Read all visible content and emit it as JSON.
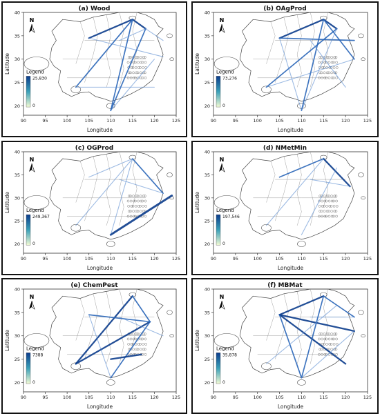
{
  "chart_data": [
    {
      "type": "map",
      "title": "(a) Wood",
      "xlabel": "Longitude",
      "ylabel": "Latitude",
      "xlim": [
        90,
        125
      ],
      "ylim": [
        18,
        40
      ],
      "xticks": [
        "90",
        "95",
        "100",
        "105",
        "110",
        "115",
        "120",
        "125"
      ],
      "yticks": [
        "20",
        "25",
        "30",
        "35",
        "40"
      ],
      "legend_title": "Legend",
      "legend_max": "25,830",
      "legend_min": "0",
      "north": "N",
      "flows": [
        {
          "from": [
            105,
            34.5
          ],
          "to": [
            115,
            38.5
          ],
          "w": 3
        },
        {
          "from": [
            115,
            38.5
          ],
          "to": [
            118,
            36.5
          ],
          "w": 3
        },
        {
          "from": [
            118,
            36.5
          ],
          "to": [
            110,
            19
          ],
          "w": 2
        },
        {
          "from": [
            115,
            38.5
          ],
          "to": [
            110,
            19
          ],
          "w": 2
        },
        {
          "from": [
            115,
            38.5
          ],
          "to": [
            102,
            24
          ],
          "w": 2
        },
        {
          "from": [
            105,
            34.5
          ],
          "to": [
            122,
            30.5
          ],
          "w": 1
        },
        {
          "from": [
            102,
            24
          ],
          "to": [
            120,
            24
          ],
          "w": 1
        },
        {
          "from": [
            110,
            19
          ],
          "to": [
            120,
            30
          ],
          "w": 1
        },
        {
          "from": [
            118,
            36.5
          ],
          "to": [
            122,
            34
          ],
          "w": 1
        },
        {
          "from": [
            112,
            34
          ],
          "to": [
            118,
            36.5
          ],
          "w": 1
        }
      ]
    },
    {
      "type": "map",
      "title": "(b) OAgProd",
      "xlabel": "Longitude",
      "ylabel": "Latitude",
      "xlim": [
        90,
        125
      ],
      "ylim": [
        18,
        40
      ],
      "xticks": [
        "90",
        "95",
        "100",
        "105",
        "110",
        "115",
        "120",
        "125"
      ],
      "yticks": [
        "20",
        "25",
        "30",
        "35",
        "40"
      ],
      "legend_title": "Legend",
      "legend_max": "73,276",
      "legend_min": "0",
      "north": "N",
      "flows": [
        {
          "from": [
            105,
            34.5
          ],
          "to": [
            115,
            38.5
          ],
          "w": 3
        },
        {
          "from": [
            115,
            38.5
          ],
          "to": [
            118,
            36.5
          ],
          "w": 3
        },
        {
          "from": [
            115,
            38.5
          ],
          "to": [
            110,
            19
          ],
          "w": 2
        },
        {
          "from": [
            115,
            38.5
          ],
          "to": [
            122,
            30
          ],
          "w": 2
        },
        {
          "from": [
            118,
            36.5
          ],
          "to": [
            102,
            24
          ],
          "w": 2
        },
        {
          "from": [
            105,
            34.5
          ],
          "to": [
            122,
            34
          ],
          "w": 2
        },
        {
          "from": [
            112,
            34
          ],
          "to": [
            120,
            24
          ],
          "w": 1
        },
        {
          "from": [
            110,
            19
          ],
          "to": [
            118,
            36.5
          ],
          "w": 1
        },
        {
          "from": [
            102,
            24
          ],
          "to": [
            122,
            30
          ],
          "w": 1
        },
        {
          "from": [
            105,
            34.5
          ],
          "to": [
            110,
            19
          ],
          "w": 1
        }
      ]
    },
    {
      "type": "map",
      "title": "(c) OGProd",
      "xlabel": "Longitude",
      "ylabel": "Latitude",
      "xlim": [
        90,
        125
      ],
      "ylim": [
        18,
        40
      ],
      "xticks": [
        "90",
        "95",
        "100",
        "105",
        "110",
        "115",
        "120",
        "125"
      ],
      "yticks": [
        "20",
        "25",
        "30",
        "35",
        "40"
      ],
      "legend_title": "Legend",
      "legend_max": "249,367",
      "legend_min": "0",
      "north": "N",
      "flows": [
        {
          "from": [
            110,
            22
          ],
          "to": [
            124,
            30.5
          ],
          "w": 4
        },
        {
          "from": [
            115,
            38.5
          ],
          "to": [
            122,
            31
          ],
          "w": 2
        },
        {
          "from": [
            115,
            38.5
          ],
          "to": [
            110,
            22
          ],
          "w": 1
        },
        {
          "from": [
            105,
            34.5
          ],
          "to": [
            115,
            38.5
          ],
          "w": 1
        },
        {
          "from": [
            102,
            24
          ],
          "to": [
            115,
            38.5
          ],
          "w": 1
        },
        {
          "from": [
            112,
            34
          ],
          "to": [
            122,
            31
          ],
          "w": 1
        }
      ]
    },
    {
      "type": "map",
      "title": "(d) NMetMin",
      "xlabel": "Longitude",
      "ylabel": "Latitude",
      "xlim": [
        90,
        125
      ],
      "ylim": [
        18,
        40
      ],
      "xticks": [
        "90",
        "95",
        "100",
        "105",
        "110",
        "115",
        "120",
        "125"
      ],
      "yticks": [
        "20",
        "25",
        "30",
        "35",
        "40"
      ],
      "legend_title": "Legend",
      "legend_max": "197,546",
      "legend_min": "0",
      "north": "N",
      "flows": [
        {
          "from": [
            115,
            38.5
          ],
          "to": [
            121,
            32.5
          ],
          "w": 3
        },
        {
          "from": [
            105,
            34.5
          ],
          "to": [
            115,
            38.5
          ],
          "w": 2
        },
        {
          "from": [
            112,
            34
          ],
          "to": [
            121,
            32.5
          ],
          "w": 1
        },
        {
          "from": [
            102,
            24
          ],
          "to": [
            115,
            38.5
          ],
          "w": 1
        },
        {
          "from": [
            110,
            22
          ],
          "to": [
            118,
            36.5
          ],
          "w": 1
        }
      ]
    },
    {
      "type": "map",
      "title": "(e) ChemPest",
      "xlabel": "Longitude",
      "ylabel": "Latitude",
      "xlim": [
        90,
        125
      ],
      "ylim": [
        18,
        40
      ],
      "xticks": [
        "90",
        "95",
        "100",
        "105",
        "110",
        "115",
        "120",
        "125"
      ],
      "yticks": [
        "20",
        "25",
        "30",
        "35",
        "40"
      ],
      "legend_title": "Legend",
      "legend_max": "7388",
      "legend_min": "0",
      "north": "N",
      "flows": [
        {
          "from": [
            102,
            24
          ],
          "to": [
            119,
            33
          ],
          "w": 3
        },
        {
          "from": [
            115,
            38.5
          ],
          "to": [
            102,
            24
          ],
          "w": 3
        },
        {
          "from": [
            105,
            34.5
          ],
          "to": [
            119,
            33
          ],
          "w": 2
        },
        {
          "from": [
            119,
            33
          ],
          "to": [
            110,
            21
          ],
          "w": 2
        },
        {
          "from": [
            115,
            38.5
          ],
          "to": [
            119,
            33
          ],
          "w": 2
        },
        {
          "from": [
            110,
            25
          ],
          "to": [
            117,
            26
          ],
          "w": 3
        },
        {
          "from": [
            112,
            34
          ],
          "to": [
            122,
            30
          ],
          "w": 1
        },
        {
          "from": [
            105,
            34.5
          ],
          "to": [
            110,
            21
          ],
          "w": 1
        }
      ]
    },
    {
      "type": "map",
      "title": "(f) MBMat",
      "xlabel": "Longitude",
      "ylabel": "Latitude",
      "xlim": [
        90,
        125
      ],
      "ylim": [
        18,
        40
      ],
      "xticks": [
        "90",
        "95",
        "100",
        "105",
        "110",
        "115",
        "120",
        "125"
      ],
      "yticks": [
        "20",
        "25",
        "30",
        "35",
        "40"
      ],
      "legend_title": "Legend",
      "legend_max": "35,878",
      "legend_min": "0",
      "north": "N",
      "flows": [
        {
          "from": [
            105,
            34.5
          ],
          "to": [
            115,
            38.5
          ],
          "w": 3
        },
        {
          "from": [
            105,
            34.5
          ],
          "to": [
            122,
            31
          ],
          "w": 3
        },
        {
          "from": [
            105,
            34.5
          ],
          "to": [
            120,
            24
          ],
          "w": 3
        },
        {
          "from": [
            105,
            34.5
          ],
          "to": [
            110,
            21
          ],
          "w": 2
        },
        {
          "from": [
            115,
            38.5
          ],
          "to": [
            110,
            21
          ],
          "w": 2
        },
        {
          "from": [
            115,
            38.5
          ],
          "to": [
            122,
            34
          ],
          "w": 2
        },
        {
          "from": [
            102,
            24
          ],
          "to": [
            118,
            36.5
          ],
          "w": 1
        },
        {
          "from": [
            110,
            21
          ],
          "to": [
            122,
            31
          ],
          "w": 1
        },
        {
          "from": [
            112,
            34
          ],
          "to": [
            122,
            34
          ],
          "w": 1
        }
      ]
    }
  ],
  "colors": {
    "flow_strong": "#0b3c8c",
    "flow_weak": "#5a8cd0",
    "cbar_top": "#0b3c8c",
    "cbar_mid": "#3aa0b8",
    "cbar_bottom": "#f2fad4",
    "outline": "#444444"
  }
}
